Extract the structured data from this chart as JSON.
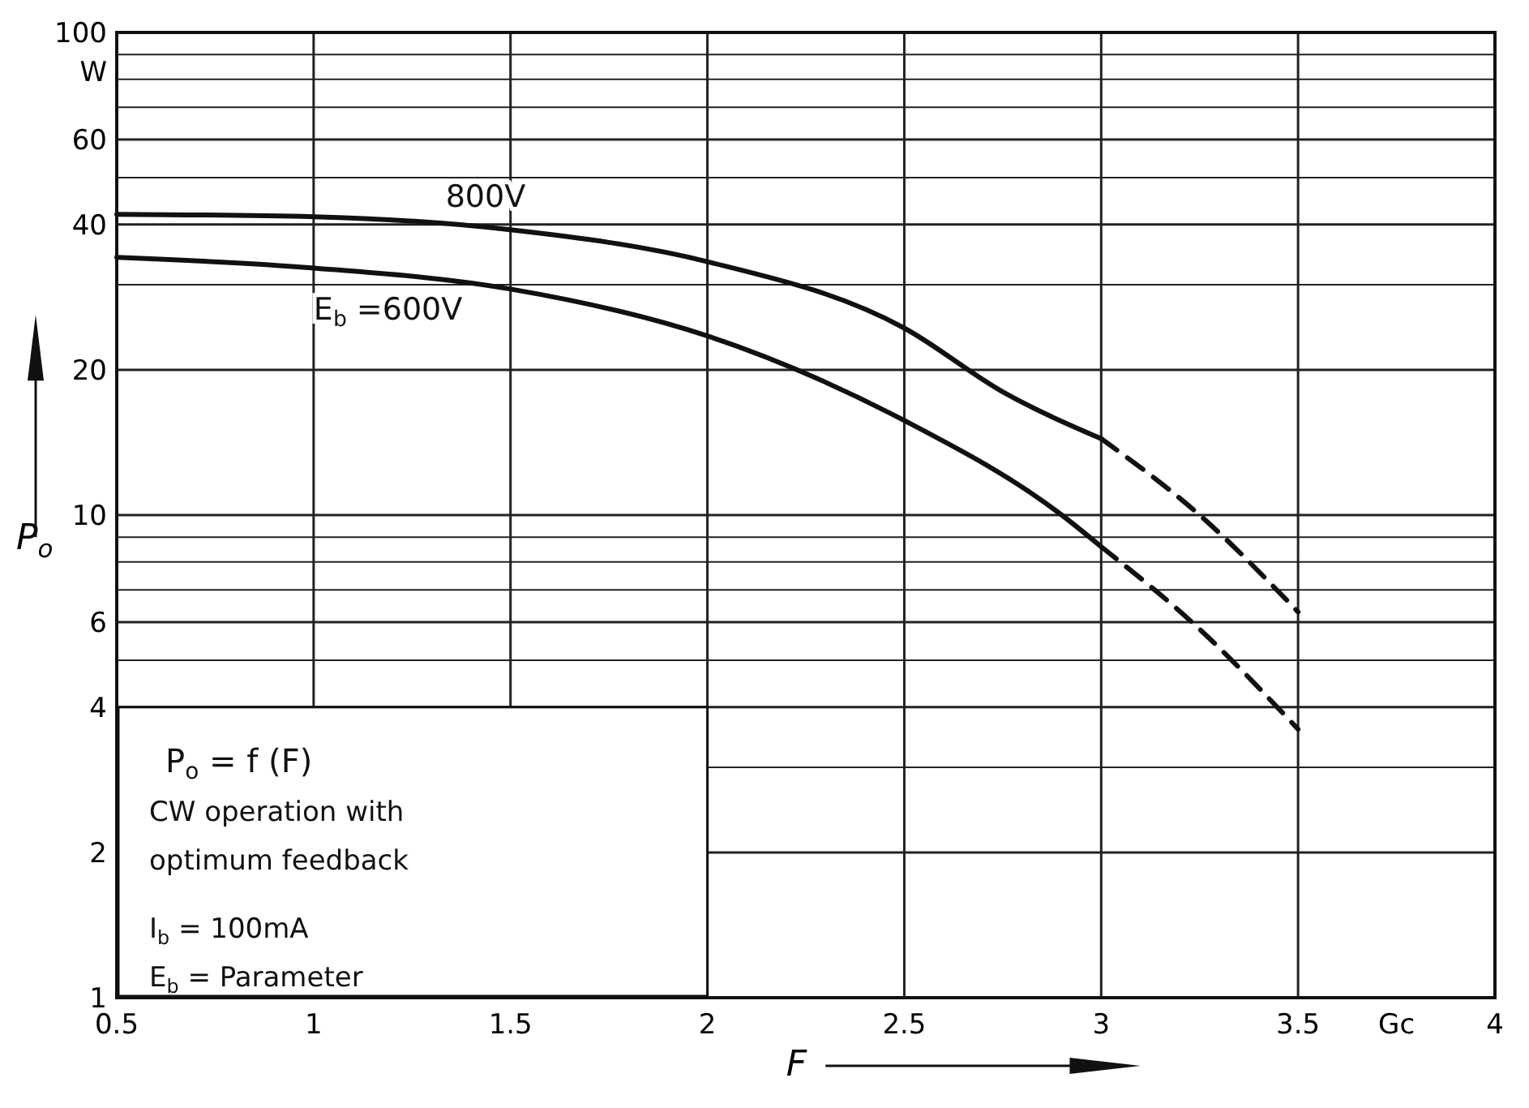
{
  "chart_data": {
    "type": "line",
    "xlabel": "F",
    "ylabel": "P$_{o}$",
    "log": "y",
    "grid": true,
    "marker": "none",
    "xlim": [
      0.5,
      4
    ],
    "xticks": [
      0.5,
      1,
      1.5,
      2,
      2.5,
      3,
      3.5,
      4
    ],
    "ylim": [
      1,
      100
    ],
    "yticks": [
      1,
      2,
      {
        "value": 3,
        "label": null
      },
      4,
      {
        "value": 5,
        "label": null
      },
      6,
      {
        "value": 7,
        "label": null
      },
      {
        "value": 8,
        "label": null
      },
      {
        "value": 9,
        "label": null
      },
      10,
      20,
      {
        "value": 30,
        "label": null
      },
      40,
      {
        "value": 50,
        "label": null
      },
      60,
      {
        "value": 70,
        "label": null
      },
      {
        "value": 80,
        "label": null
      },
      {
        "value": 90,
        "label": null
      },
      100
    ],
    "series": [
      {
        "name": "800V",
        "color": "#111111",
        "line_style": "solid",
        "x": [
          0.5,
          1,
          1.5,
          2,
          2.5,
          2.75,
          3
        ],
        "values": [
          42,
          41.5,
          39,
          33.5,
          24.4,
          18,
          14.4
        ]
      },
      {
        "color": "#111111",
        "line_style": "dashed",
        "x": [
          3,
          3.25,
          3.5
        ],
        "values": [
          14.4,
          10,
          6.3
        ]
      },
      {
        "name": "E$_{b}$ =600V",
        "color": "#111111",
        "line_style": "solid",
        "x": [
          0.5,
          1,
          1.5,
          2,
          2.5,
          2.9,
          3
        ],
        "values": [
          34.2,
          32.5,
          29.4,
          23.5,
          15.7,
          10,
          8.6
        ]
      },
      {
        "color": "#111111",
        "line_style": "dashed",
        "x": [
          3,
          3.25,
          3.5
        ],
        "values": [
          8.6,
          5.8,
          3.6
        ]
      }
    ],
    "annotations": [
      "W",
      "Gc",
      "P$_{o}$   = f (F)",
      "CW operation with",
      "optimum feedback",
      "I$_{b}$ = 100mA",
      "E$_{b}$ = Parameter"
    ]
  }
}
